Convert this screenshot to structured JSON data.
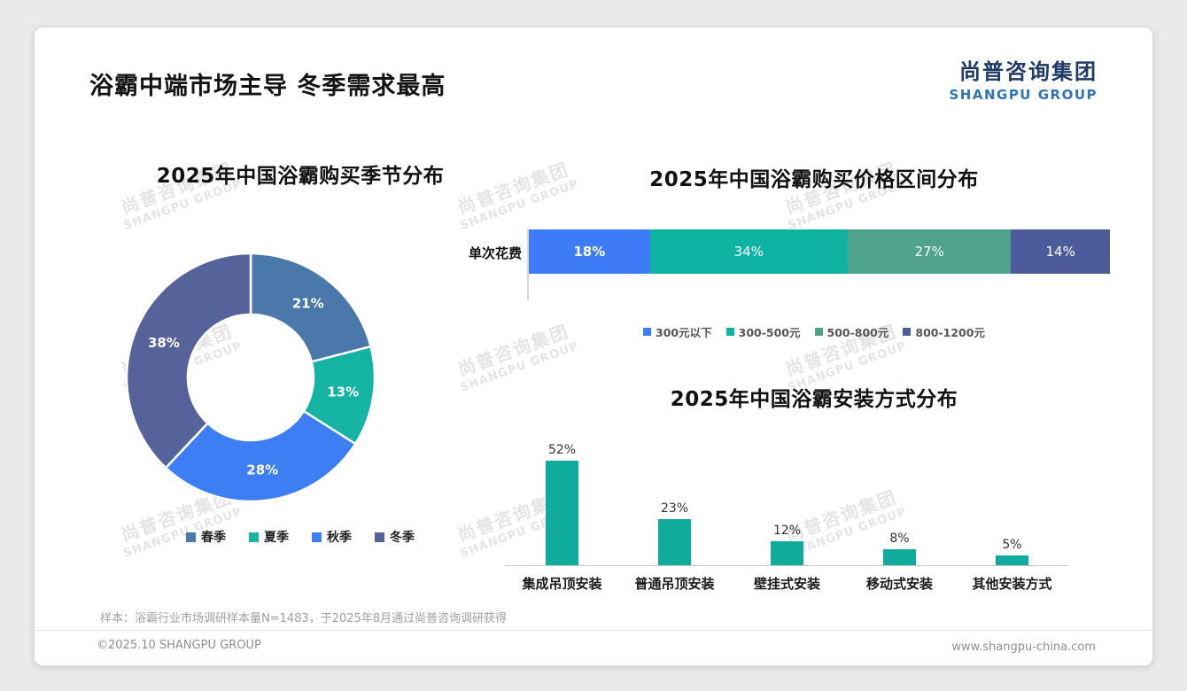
{
  "page": {
    "title": "浴霸中端市场主导 冬季需求最高",
    "logo": {
      "cn": "尚普咨询集团",
      "en": "SHANGPU GROUP"
    },
    "watermark": {
      "line1": "尚普咨询集团",
      "line2": "SHANGPU GROUP"
    },
    "note": "样本：浴霸行业市场调研样本量N=1483，于2025年8月通过尚普咨询调研获得",
    "footer": {
      "left": "©2025.10 SHANGPU GROUP",
      "right": "www.shangpu-china.com"
    }
  },
  "chart_data": [
    {
      "type": "pie",
      "subtype": "donut",
      "title": "2025年中国浴霸购买季节分布",
      "labels": [
        "春季",
        "夏季",
        "秋季",
        "冬季"
      ],
      "values": [
        21,
        13,
        28,
        38
      ],
      "unit": "%",
      "colors": [
        "#4a78ab",
        "#14b3a4",
        "#3e7ef5",
        "#56639b"
      ],
      "legend_position": "bottom"
    },
    {
      "type": "bar",
      "subtype": "horizontal-stacked",
      "title": "2025年中国浴霸购买价格区间分布",
      "row_label": "单次花费",
      "categories": [
        "300元以下",
        "300-500元",
        "500-800元",
        "800-1200元"
      ],
      "values": [
        18,
        34,
        27,
        14
      ],
      "unit": "%",
      "colors": [
        "#3e7bf6",
        "#0fb3a3",
        "#4fa28c",
        "#4c5b9c"
      ]
    },
    {
      "type": "bar",
      "title": "2025年中国浴霸安装方式分布",
      "categories": [
        "集成吊顶安装",
        "普通吊顶安装",
        "壁挂式安装",
        "移动式安装",
        "其他安装方式"
      ],
      "values": [
        52,
        23,
        12,
        8,
        5
      ],
      "unit": "%",
      "color": "#0fab9c",
      "ylim": [
        0,
        60
      ],
      "grid": false
    }
  ]
}
